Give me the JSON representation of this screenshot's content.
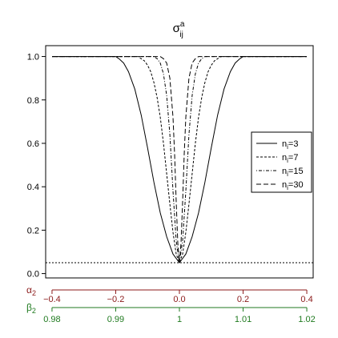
{
  "chart_data": {
    "type": "line",
    "title": "σ",
    "title_superscript": "a",
    "title_subscript": "ij",
    "xlabel": "",
    "ylabel": "",
    "xlim": [
      -0.42,
      0.42
    ],
    "ylim": [
      -0.02,
      1.05
    ],
    "y_ticks": [
      {
        "value": 0.0,
        "label": "0.0"
      },
      {
        "value": 0.2,
        "label": "0.2"
      },
      {
        "value": 0.4,
        "label": "0.4"
      },
      {
        "value": 0.6,
        "label": "0.6"
      },
      {
        "value": 0.8,
        "label": "0.8"
      },
      {
        "value": 1.0,
        "label": "1.0"
      }
    ],
    "x_axes": [
      {
        "label": "α",
        "label_subscript": "2",
        "color": "#8b1a1a",
        "ticks": [
          {
            "value": -0.4,
            "label": "−0.4"
          },
          {
            "value": -0.2,
            "label": "−0.2"
          },
          {
            "value": 0.0,
            "label": "0.0"
          },
          {
            "value": 0.2,
            "label": "0.2"
          },
          {
            "value": 0.4,
            "label": "0.4"
          }
        ]
      },
      {
        "label": "β",
        "label_subscript": "2",
        "color": "#1f7a1f",
        "ticks": [
          {
            "value": -0.4,
            "label": "0.98"
          },
          {
            "value": -0.2,
            "label": "0.99"
          },
          {
            "value": 0.0,
            "label": "1"
          },
          {
            "value": 0.2,
            "label": "1.01"
          },
          {
            "value": 0.4,
            "label": "1.02"
          }
        ]
      }
    ],
    "reference_line": {
      "y": 0.05,
      "style": "dotted"
    },
    "legend_position": "right",
    "series": [
      {
        "name": "n",
        "name_subscript": "i",
        "name_suffix": "=3",
        "dash": "solid",
        "x": [
          -0.4,
          -0.2,
          -0.19,
          -0.175,
          -0.16,
          -0.14,
          -0.12,
          -0.1,
          -0.08,
          -0.06,
          -0.04,
          -0.02,
          0.0,
          0.02,
          0.04,
          0.06,
          0.08,
          0.1,
          0.12,
          0.14,
          0.16,
          0.175,
          0.19,
          0.2,
          0.4
        ],
        "y": [
          1.0,
          1.0,
          0.99,
          0.97,
          0.93,
          0.85,
          0.73,
          0.58,
          0.42,
          0.28,
          0.17,
          0.09,
          0.05,
          0.09,
          0.17,
          0.28,
          0.42,
          0.58,
          0.73,
          0.85,
          0.93,
          0.97,
          0.99,
          1.0,
          1.0
        ]
      },
      {
        "name": "n",
        "name_subscript": "i",
        "name_suffix": "=7",
        "dash": "short-dash",
        "x": [
          -0.4,
          -0.13,
          -0.12,
          -0.11,
          -0.1,
          -0.09,
          -0.08,
          -0.07,
          -0.06,
          -0.05,
          -0.04,
          -0.03,
          -0.02,
          -0.01,
          0.0,
          0.01,
          0.02,
          0.03,
          0.04,
          0.05,
          0.06,
          0.07,
          0.08,
          0.09,
          0.1,
          0.11,
          0.12,
          0.13,
          0.4
        ],
        "y": [
          1.0,
          1.0,
          0.99,
          0.98,
          0.96,
          0.93,
          0.88,
          0.81,
          0.72,
          0.6,
          0.46,
          0.32,
          0.19,
          0.09,
          0.05,
          0.09,
          0.19,
          0.32,
          0.46,
          0.6,
          0.72,
          0.81,
          0.88,
          0.93,
          0.96,
          0.98,
          0.99,
          1.0,
          1.0
        ]
      },
      {
        "name": "n",
        "name_subscript": "i",
        "name_suffix": "=15",
        "dash": "dot-dash",
        "x": [
          -0.4,
          -0.08,
          -0.07,
          -0.06,
          -0.05,
          -0.04,
          -0.03,
          -0.02,
          -0.01,
          0.0,
          0.01,
          0.02,
          0.03,
          0.04,
          0.05,
          0.06,
          0.07,
          0.08,
          0.4
        ],
        "y": [
          1.0,
          1.0,
          0.99,
          0.97,
          0.92,
          0.82,
          0.64,
          0.38,
          0.15,
          0.05,
          0.15,
          0.38,
          0.64,
          0.82,
          0.92,
          0.97,
          0.99,
          1.0,
          1.0
        ]
      },
      {
        "name": "n",
        "name_subscript": "i",
        "name_suffix": "=30",
        "dash": "long-dash",
        "x": [
          -0.4,
          -0.06,
          -0.05,
          -0.04,
          -0.03,
          -0.02,
          -0.015,
          -0.01,
          -0.005,
          0.0,
          0.005,
          0.01,
          0.015,
          0.02,
          0.03,
          0.04,
          0.05,
          0.06,
          0.4
        ],
        "y": [
          1.0,
          1.0,
          0.99,
          0.97,
          0.9,
          0.72,
          0.55,
          0.33,
          0.14,
          0.05,
          0.14,
          0.33,
          0.55,
          0.72,
          0.9,
          0.97,
          0.99,
          1.0,
          1.0
        ]
      }
    ]
  }
}
